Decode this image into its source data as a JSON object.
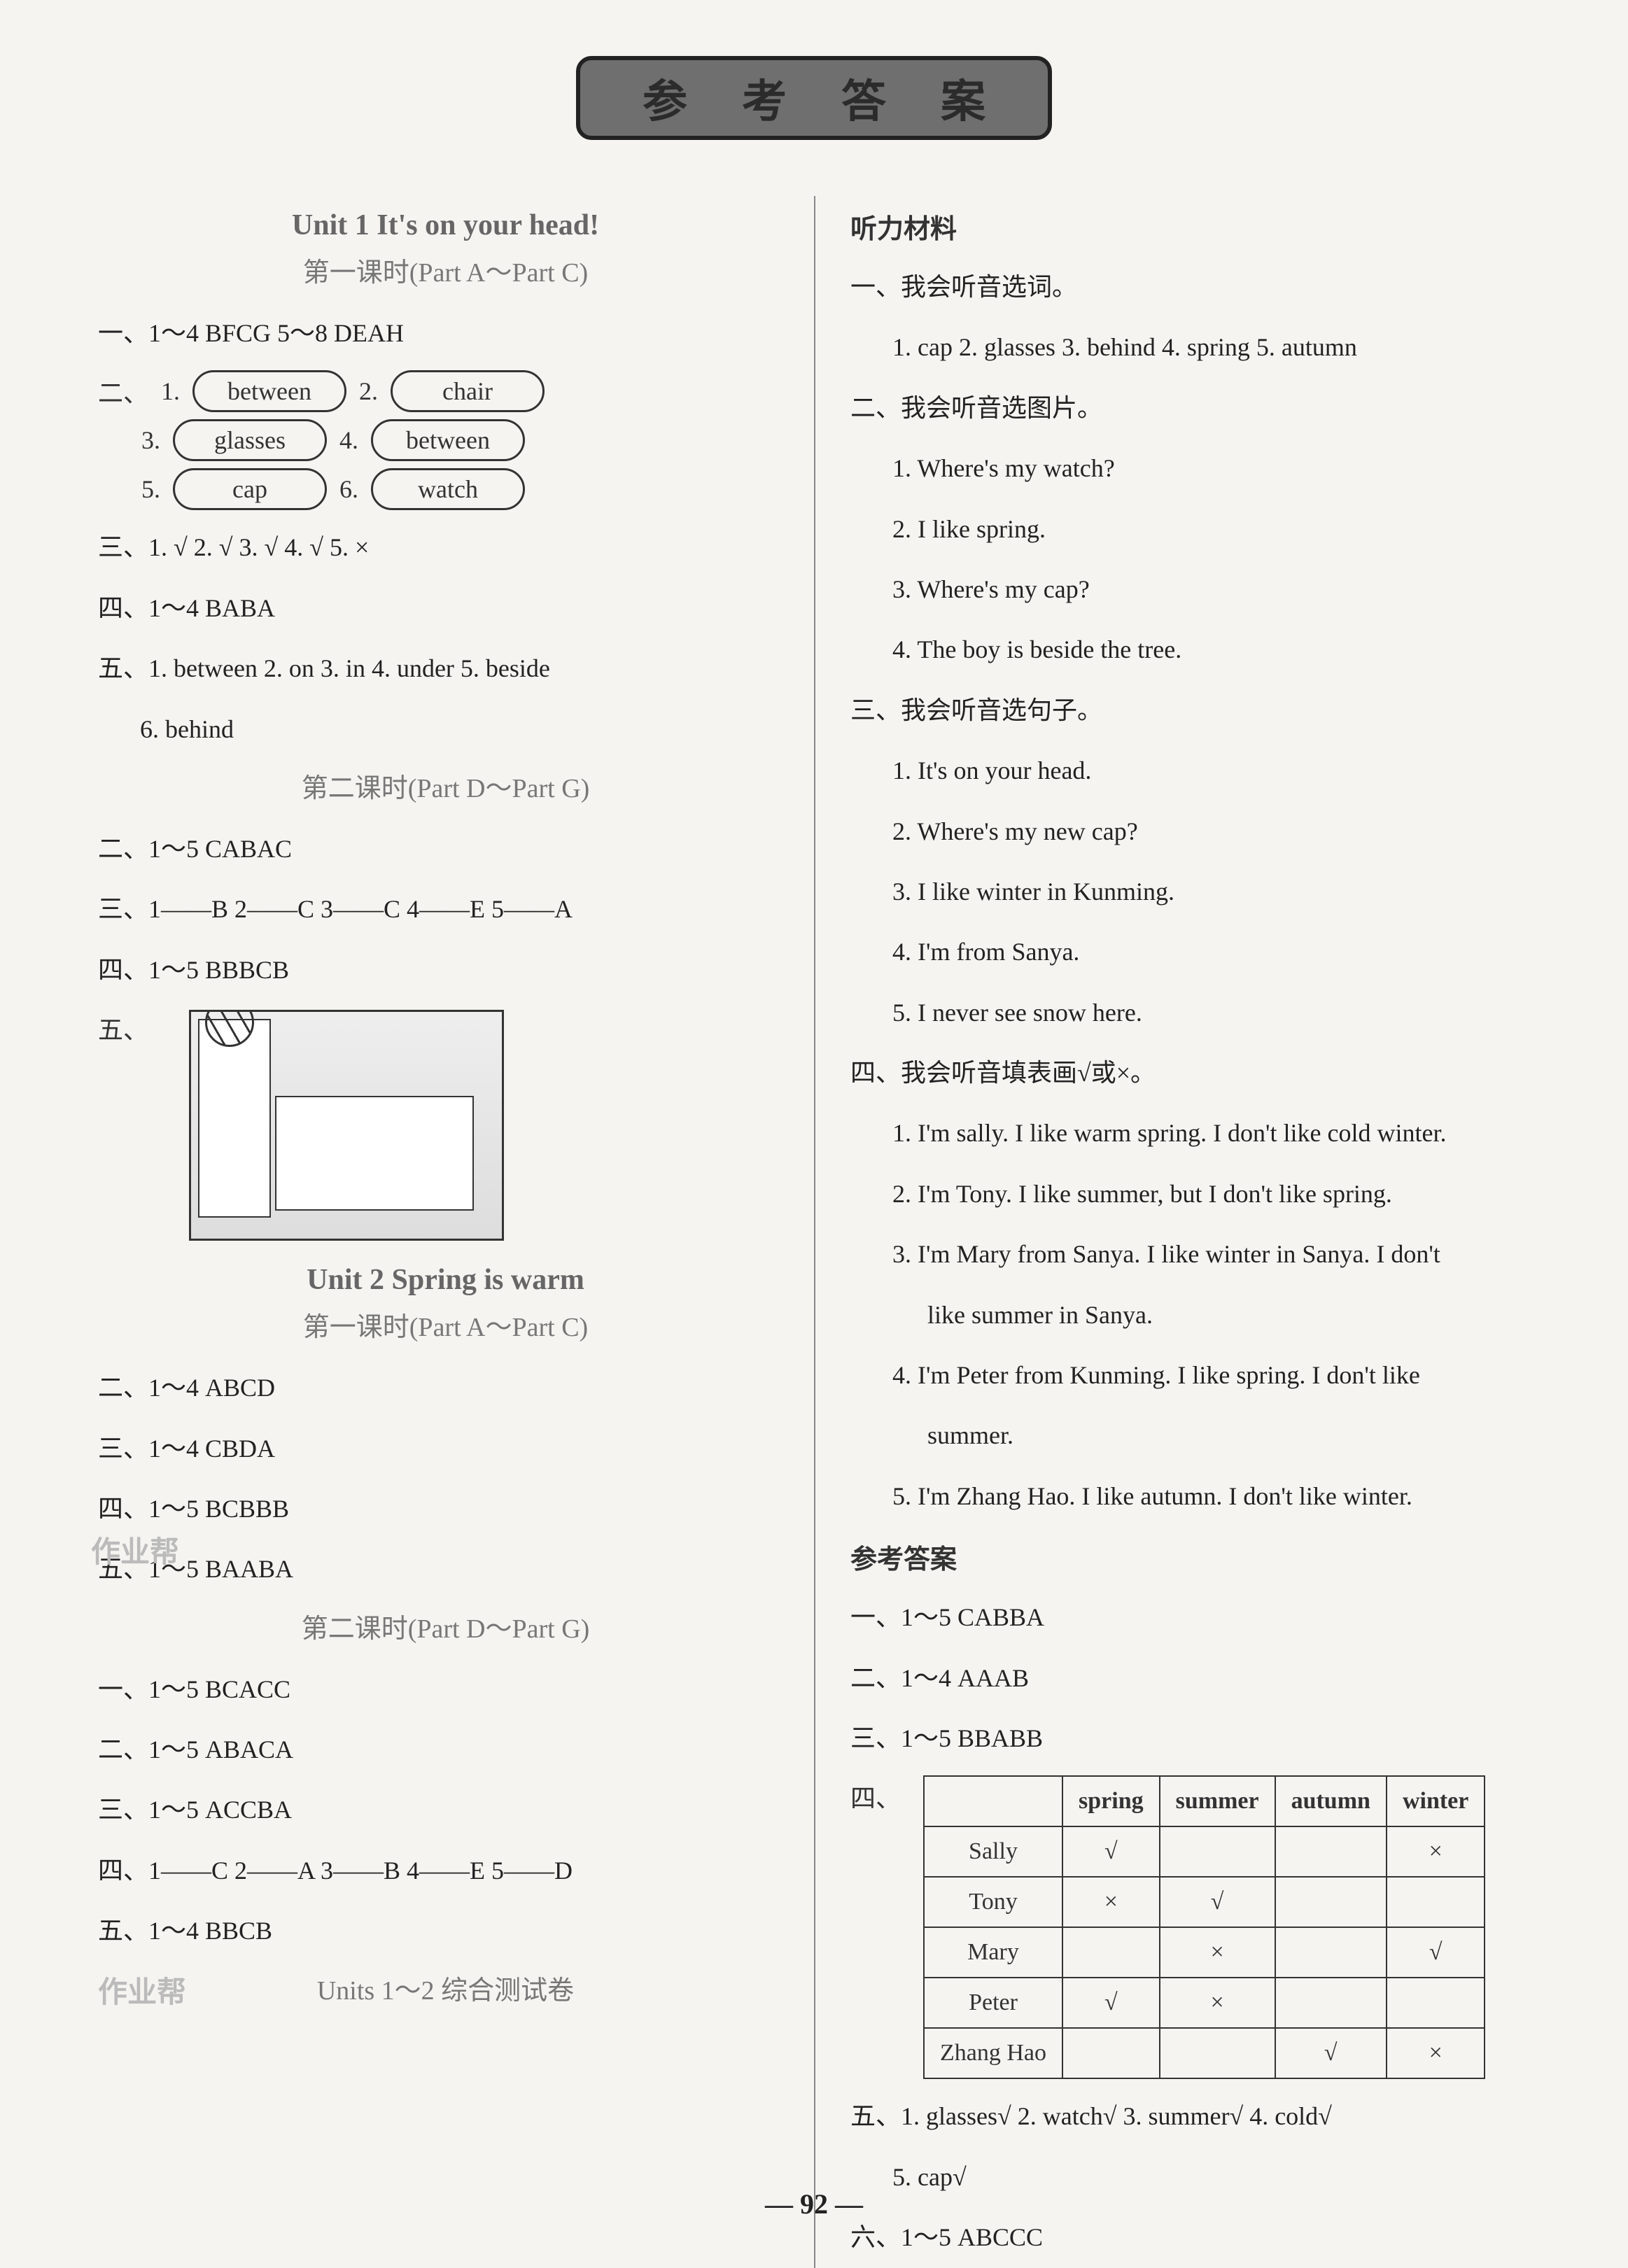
{
  "title_chars": "参考答案",
  "page_number": "92",
  "left": {
    "unit1_heading": "Unit 1   It's on your head!",
    "unit1_sub1": "第一课时(Part A～Part C)",
    "u1l1_a": "一、1～4   BFCG   5～8   DEAH",
    "u1l1_b_label": "二、",
    "ovals": {
      "n1": "1.",
      "v1": "between",
      "n2": "2.",
      "v2": "chair",
      "n3": "3.",
      "v3": "glasses",
      "n4": "4.",
      "v4": "between",
      "n5": "5.",
      "v5": "cap",
      "n6": "6.",
      "v6": "watch"
    },
    "u1l1_c": "三、1. √   2. √   3. √   4. √   5. ×",
    "u1l1_d": "四、1～4   BABA",
    "u1l1_e": "五、1. between     2. on     3. in     4. under     5. beside",
    "u1l1_e2": "6. behind",
    "unit1_sub2": "第二课时(Part D～Part G)",
    "u1l2_a": "二、1～5   CABAC",
    "u1l2_b": "三、1——B   2——C   3——C   4——E   5——A",
    "u1l2_c": "四、1～5   BBBCB",
    "u1l2_d_label": "五、",
    "unit2_heading": "Unit 2   Spring is warm",
    "unit2_sub1": "第一课时(Part A～Part C)",
    "u2l1_a": "二、1～4   ABCD",
    "u2l1_b": "三、1～4   CBDA",
    "u2l1_c": "四、1～5   BCBBB",
    "u2l1_d": "五、1～5   BAABA",
    "unit2_sub2": "第二课时(Part D～Part G)",
    "u2l2_a": "一、1～5   BCACC",
    "u2l2_b": "二、1～5   ABACA",
    "u2l2_c": "三、1～5   ACCBA",
    "u2l2_d": "四、1——C   2——A   3——B   4——E   5——D",
    "u2l2_e": "五、1～4   BBCB",
    "combined_heading": "Units 1～2 综合测试卷",
    "watermark1": "作业帮",
    "watermark2": "作业帮"
  },
  "right": {
    "listen_heading": "听力材料",
    "s1_h": "一、我会听音选词。",
    "s1_1": "1. cap   2. glasses   3. behind   4. spring   5. autumn",
    "s2_h": "二、我会听音选图片。",
    "s2_1": "1. Where's my watch?",
    "s2_2": "2. I like spring.",
    "s2_3": "3. Where's my cap?",
    "s2_4": "4. The boy is beside the tree.",
    "s3_h": "三、我会听音选句子。",
    "s3_1": "1. It's on your head.",
    "s3_2": "2. Where's my new cap?",
    "s3_3": "3. I like winter in Kunming.",
    "s3_4": "4. I'm from Sanya.",
    "s3_5": "5. I never see snow here.",
    "s4_h": "四、我会听音填表画√或×。",
    "s4_1": "1. I'm sally. I like warm spring. I don't like cold winter.",
    "s4_2": "2. I'm Tony. I like summer, but I don't like spring.",
    "s4_3a": "3. I'm Mary from Sanya. I like winter in Sanya. I don't",
    "s4_3b": "like summer in Sanya.",
    "s4_4a": "4. I'm Peter from Kunming. I like spring. I don't like",
    "s4_4b": "summer.",
    "s4_5": "5. I'm Zhang Hao. I like autumn. I don't like winter.",
    "ans_heading": "参考答案",
    "a1": "一、1～5   CABBA",
    "a2": "二、1～4   AAAB",
    "a3": "三、1～5   BBABB",
    "a4_label": "四、",
    "table": {
      "headers": [
        "",
        "spring",
        "summer",
        "autumn",
        "winter"
      ],
      "rows": [
        [
          "Sally",
          "√",
          "",
          "",
          "×"
        ],
        [
          "Tony",
          "×",
          "√",
          "",
          ""
        ],
        [
          "Mary",
          "",
          "×",
          "",
          "√"
        ],
        [
          "Peter",
          "√",
          "×",
          "",
          ""
        ],
        [
          "Zhang Hao",
          "",
          "",
          "√",
          "×"
        ]
      ]
    },
    "a5a": "五、1. glasses√     2. watch√     3. summer√     4. cold√",
    "a5b": "5. cap√",
    "a6": "六、1～5   ABCCC"
  }
}
